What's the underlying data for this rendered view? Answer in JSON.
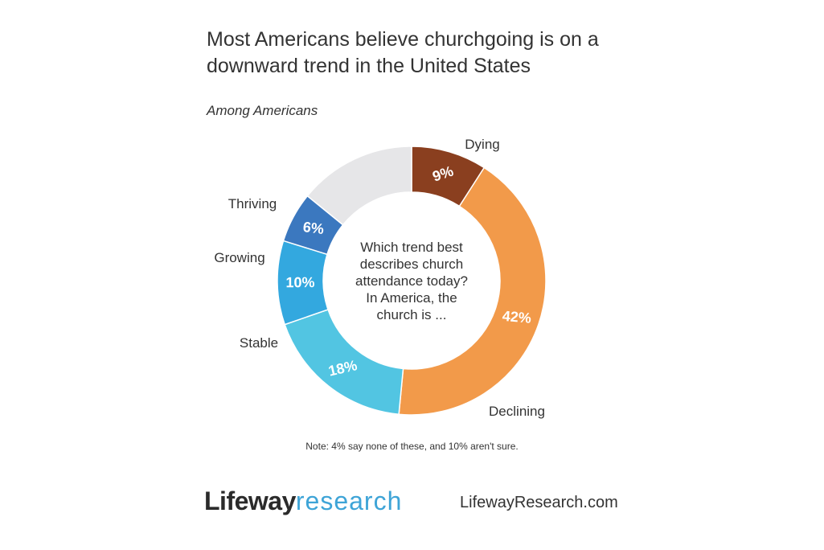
{
  "chart_data": {
    "type": "pie",
    "title": "Most Americans believe churchgoing is on a downward trend in the United States",
    "subtitle": "Among Americans",
    "center_text": [
      "Which trend best",
      "describes church",
      "attendance today?",
      "In America, the",
      "church is ..."
    ],
    "slices": [
      {
        "name": "Dying",
        "value": 9,
        "label": "9%",
        "color": "#8a3f1f"
      },
      {
        "name": "Declining",
        "value": 42,
        "label": "42%",
        "color": "#f29a4a"
      },
      {
        "name": "Stable",
        "value": 18,
        "label": "18%",
        "color": "#52c5e2"
      },
      {
        "name": "Growing",
        "value": 10,
        "label": "10%",
        "color": "#33a8df"
      },
      {
        "name": "Thriving",
        "value": 6,
        "label": "6%",
        "color": "#3b78bf"
      },
      {
        "name": "",
        "value": 14,
        "label": "",
        "color": "#e6e6e8"
      }
    ],
    "note": "Note: 4% say none of these, and 10% aren't sure."
  },
  "footer": {
    "brand_lifeway": "Lifeway",
    "brand_research": "research",
    "website": "LifewayResearch.com"
  }
}
